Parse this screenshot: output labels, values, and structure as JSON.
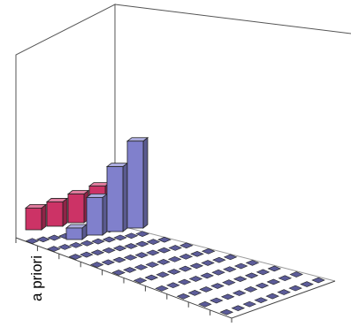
{
  "chart_data": {
    "type": "bar",
    "projection": "3d",
    "ylabel": "a priori",
    "grid_size": {
      "rows": 9,
      "cols": 10
    },
    "bar_color": "#5c5c99",
    "floor_marker_color": "#5c5c99",
    "zlim": [
      0,
      1
    ],
    "series": [
      {
        "color": "#cc3366",
        "values": [
          0.25,
          0.28,
          0.33,
          0.38
        ]
      },
      {
        "color": "#8080cc",
        "values": [
          0.11,
          0.36,
          0.62,
          0.83
        ]
      }
    ]
  }
}
